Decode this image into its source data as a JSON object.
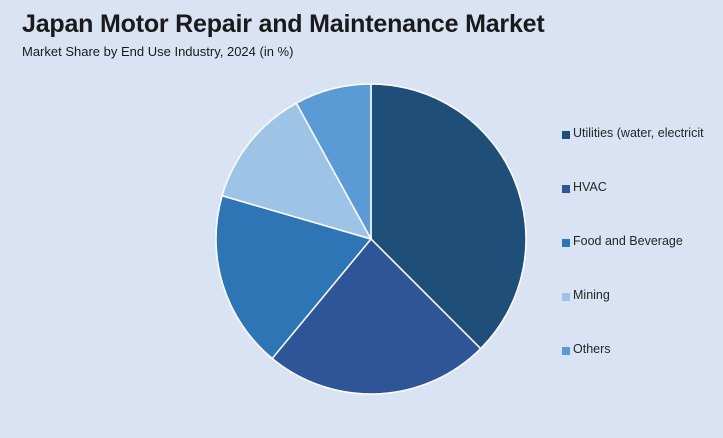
{
  "title": "Japan Motor Repair and Maintenance Market",
  "subtitle": "Market Share by End Use Industry, 2024 (in %)",
  "chart_data": {
    "type": "pie",
    "title": "Japan Motor Repair and Maintenance Market",
    "subtitle": "Market Share by End Use Industry, 2024 (in %)",
    "legend_position": "right",
    "start_angle_deg": 0,
    "direction": "clockwise",
    "slices": [
      {
        "label": "Utilities (water, electricit",
        "value": 37.5,
        "color": "#1f4e79"
      },
      {
        "label": "HVAC",
        "value": 23.5,
        "color": "#2e5597"
      },
      {
        "label": "Food and Beverage",
        "value": 18.5,
        "color": "#2e75b6"
      },
      {
        "label": "Mining",
        "value": 12.5,
        "color": "#9dc3e6"
      },
      {
        "label": "Others",
        "value": 8.0,
        "color": "#5b9bd5"
      }
    ]
  }
}
